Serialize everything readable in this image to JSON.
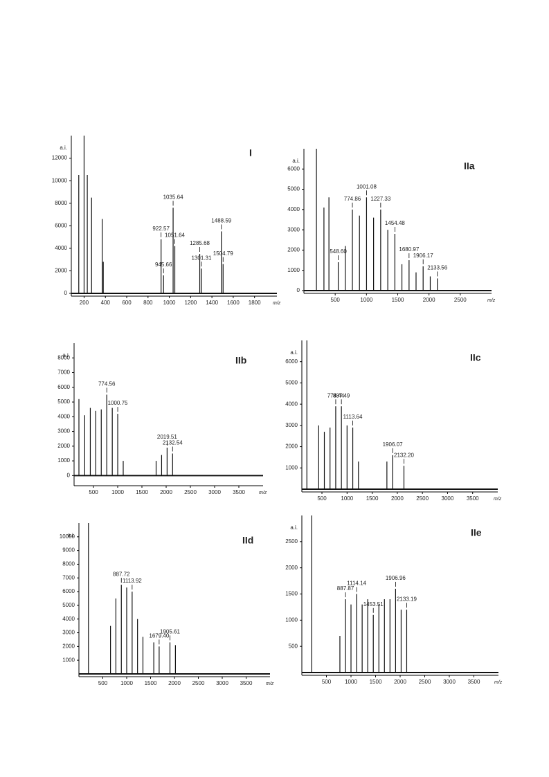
{
  "chart_data": [
    {
      "type": "spectrum",
      "title": "I",
      "y_label": "a.i.",
      "x_label": "m/z",
      "color": "#111111",
      "xlim": [
        80,
        2010
      ],
      "xticks": [
        200,
        400,
        600,
        800,
        1000,
        1200,
        1400,
        1600,
        1800
      ],
      "ylim": [
        0,
        14000
      ],
      "yticks": [
        0,
        2000,
        4000,
        6000,
        8000,
        10000,
        12000
      ],
      "x": [
        150,
        200,
        230,
        270,
        370,
        380,
        922.57,
        945.66,
        1035.64,
        1051.64,
        1285.68,
        1301.31,
        1488.59,
        1504.79
      ],
      "values": [
        10500,
        14000,
        10500,
        8500,
        6600,
        2800,
        4800,
        1600,
        7600,
        4200,
        3500,
        2200,
        5500,
        2600
      ],
      "peak_labels": [
        null,
        null,
        null,
        null,
        null,
        null,
        "922.57",
        "945.66",
        "1035.64",
        "1051.64",
        "1285.68",
        "1301.31",
        "1488.59",
        "1504.79"
      ]
    },
    {
      "type": "spectrum",
      "title": "IIa",
      "y_label": "a.i.",
      "x_label": "m/z",
      "color": "#111111",
      "xlim": [
        0,
        3000
      ],
      "xticks": [
        500,
        1000,
        1500,
        2000,
        2500
      ],
      "ylim": [
        0,
        7000
      ],
      "yticks": [
        0,
        1000,
        2000,
        3000,
        4000,
        5000,
        6000
      ],
      "x": [
        200,
        320,
        400,
        548.6,
        661,
        774.86,
        888,
        1001.08,
        1114,
        1227.33,
        1341,
        1454.48,
        1567,
        1680.97,
        1793,
        1906.17,
        2020,
        2133.56
      ],
      "values": [
        7000,
        4100,
        4600,
        1400,
        2200,
        4000,
        3700,
        4600,
        3600,
        4000,
        3000,
        2800,
        1300,
        1500,
        900,
        1200,
        700,
        600
      ],
      "peak_labels": [
        null,
        null,
        null,
        "548.60",
        null,
        "774.86",
        null,
        "1001.08",
        null,
        "1227.33",
        null,
        "1454.48",
        null,
        "1680.97",
        null,
        "1906.17",
        null,
        "2133.56"
      ]
    },
    {
      "type": "spectrum",
      "title": "IIb",
      "y_label": "a.i.",
      "x_label": "m/z",
      "color": "#111111",
      "xlim": [
        100,
        4000
      ],
      "xticks": [
        500,
        1000,
        1500,
        2000,
        2500,
        3000,
        3500
      ],
      "ylim": [
        -500,
        9000
      ],
      "yticks": [
        0,
        1000,
        2000,
        3000,
        4000,
        5000,
        6000,
        7000,
        8000
      ],
      "x": [
        200,
        320,
        435,
        548,
        661,
        774.56,
        888,
        1000.75,
        1114,
        1793,
        1906,
        2019.51,
        2132.54
      ],
      "values": [
        5200,
        4100,
        4600,
        4400,
        4500,
        5500,
        4600,
        4200,
        1000,
        1000,
        1400,
        1900,
        1500
      ],
      "peak_labels": [
        null,
        null,
        null,
        null,
        null,
        "774.56",
        null,
        "1000.75",
        null,
        null,
        null,
        "2019.51",
        "2132.54"
      ]
    },
    {
      "type": "spectrum",
      "title": "IIc",
      "y_label": "a.i.",
      "x_label": "m/z",
      "color": "#111111",
      "xlim": [
        100,
        4000
      ],
      "xticks": [
        500,
        1000,
        1500,
        2000,
        2500,
        3000,
        3500
      ],
      "ylim": [
        0,
        7000
      ],
      "yticks": [
        1000,
        2000,
        3000,
        4000,
        5000,
        6000
      ],
      "x": [
        200,
        435,
        548,
        661,
        774.44,
        887.49,
        1000,
        1113.64,
        1227,
        1793,
        1906.07,
        2132.2
      ],
      "values": [
        7000,
        3000,
        2700,
        2900,
        3900,
        3900,
        3000,
        2900,
        1300,
        1300,
        1600,
        1100
      ],
      "peak_labels": [
        null,
        null,
        null,
        null,
        "774.44",
        "887.49",
        null,
        "1113.64",
        null,
        null,
        "1906.07",
        "2132.20"
      ]
    },
    {
      "type": "spectrum",
      "title": "IId",
      "y_label": "a.i.",
      "x_label": "m/z",
      "color": "#111111",
      "xlim": [
        0,
        4000
      ],
      "xticks": [
        500,
        1000,
        1500,
        2000,
        2500,
        3000,
        3500
      ],
      "ylim": [
        0,
        11000
      ],
      "yticks": [
        1000,
        2000,
        3000,
        4000,
        5000,
        6000,
        7000,
        8000,
        9000,
        10000
      ],
      "x": [
        200,
        661,
        774,
        887.72,
        1000,
        1113.92,
        1227,
        1340,
        1567,
        1679.4,
        1905.61,
        2020
      ],
      "values": [
        11000,
        3500,
        5500,
        6500,
        6300,
        6000,
        4000,
        2700,
        2300,
        2000,
        2300,
        2100
      ],
      "peak_labels": [
        null,
        null,
        null,
        "887.72",
        null,
        "1113.92",
        null,
        null,
        null,
        "1679.40",
        "1905.61",
        null
      ]
    },
    {
      "type": "spectrum",
      "title": "IIe",
      "y_label": "a.i.",
      "x_label": "m/z",
      "color": "#111111",
      "xlim": [
        0,
        4000
      ],
      "xticks": [
        500,
        1000,
        1500,
        2000,
        2500,
        3000,
        3500
      ],
      "ylim": [
        0,
        3000
      ],
      "yticks": [
        500,
        1000,
        1500,
        2000,
        2500
      ],
      "x": [
        200,
        774,
        887.87,
        1000,
        1114.14,
        1227,
        1340,
        1453.51,
        1567,
        1680,
        1793,
        1906.96,
        2020,
        2133.19
      ],
      "values": [
        3000,
        700,
        1400,
        1300,
        1500,
        1300,
        1400,
        1100,
        1300,
        1400,
        1400,
        1600,
        1200,
        1200
      ],
      "peak_labels": [
        null,
        null,
        "887.87",
        null,
        "1114.14",
        null,
        null,
        "1453.51",
        null,
        null,
        null,
        "1906.96",
        null,
        "2133.19"
      ]
    }
  ]
}
